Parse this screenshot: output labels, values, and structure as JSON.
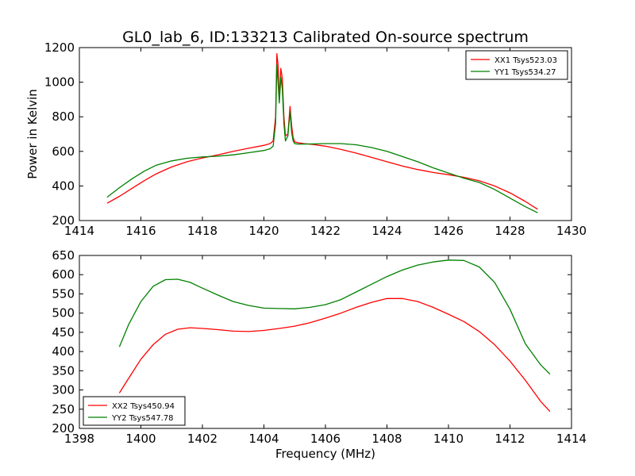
{
  "figure": {
    "title": "GL0_lab_6, ID:133213 Calibrated On-source spectrum"
  },
  "chart_data": [
    {
      "type": "line",
      "title": "GL0_lab_6, ID:133213 Calibrated On-source spectrum",
      "xlabel": "",
      "ylabel": "Power in Kelvin",
      "xlim": [
        1414,
        1430
      ],
      "ylim": [
        200,
        1200
      ],
      "xticks": [
        1414,
        1416,
        1418,
        1420,
        1422,
        1424,
        1426,
        1428,
        1430
      ],
      "yticks": [
        200,
        400,
        600,
        800,
        1000,
        1200
      ],
      "grid": false,
      "legend": "top-right",
      "series": [
        {
          "name": "XX1 Tsys523.03",
          "color": "#ff0000",
          "x": [
            1414.9,
            1415.3,
            1415.7,
            1416.1,
            1416.5,
            1417.0,
            1417.5,
            1418.0,
            1418.5,
            1419.0,
            1419.5,
            1420.0,
            1420.2,
            1420.3,
            1420.38,
            1420.42,
            1420.46,
            1420.5,
            1420.55,
            1420.6,
            1420.65,
            1420.7,
            1420.78,
            1420.85,
            1420.9,
            1420.95,
            1421.0,
            1421.1,
            1421.3,
            1421.6,
            1422.0,
            1422.5,
            1423.0,
            1423.5,
            1424.0,
            1424.5,
            1425.0,
            1425.5,
            1426.0,
            1426.5,
            1427.0,
            1427.5,
            1428.0,
            1428.5,
            1428.9
          ],
          "y": [
            300,
            340,
            385,
            430,
            470,
            510,
            540,
            562,
            580,
            600,
            618,
            635,
            645,
            660,
            800,
            1165,
            1100,
            900,
            1080,
            1020,
            800,
            690,
            700,
            860,
            750,
            680,
            655,
            650,
            645,
            640,
            630,
            612,
            590,
            565,
            540,
            515,
            495,
            478,
            465,
            450,
            430,
            400,
            360,
            310,
            265
          ]
        },
        {
          "name": "YY1 Tsys534.27",
          "color": "#008000",
          "x": [
            1414.9,
            1415.3,
            1415.7,
            1416.1,
            1416.5,
            1417.0,
            1417.5,
            1418.0,
            1418.5,
            1419.0,
            1419.5,
            1420.0,
            1420.2,
            1420.3,
            1420.38,
            1420.42,
            1420.46,
            1420.5,
            1420.55,
            1420.6,
            1420.65,
            1420.7,
            1420.78,
            1420.85,
            1420.9,
            1420.95,
            1421.0,
            1421.1,
            1421.3,
            1421.6,
            1422.0,
            1422.5,
            1423.0,
            1423.5,
            1424.0,
            1424.5,
            1425.0,
            1425.5,
            1426.0,
            1426.5,
            1427.0,
            1427.5,
            1428.0,
            1428.5,
            1428.9
          ],
          "y": [
            335,
            390,
            440,
            485,
            520,
            545,
            560,
            568,
            572,
            580,
            592,
            605,
            615,
            630,
            760,
            1100,
            1000,
            880,
            1030,
            960,
            760,
            660,
            690,
            830,
            710,
            660,
            645,
            642,
            642,
            643,
            645,
            645,
            638,
            622,
            600,
            570,
            540,
            505,
            475,
            445,
            420,
            380,
            330,
            280,
            245
          ]
        }
      ]
    },
    {
      "type": "line",
      "title": "",
      "xlabel": "Frequency (MHz)",
      "ylabel": "",
      "xlim": [
        1398,
        1414
      ],
      "ylim": [
        200,
        650
      ],
      "xticks": [
        1398,
        1400,
        1402,
        1404,
        1406,
        1408,
        1410,
        1412,
        1414
      ],
      "yticks": [
        200,
        250,
        300,
        350,
        400,
        450,
        500,
        550,
        600,
        650
      ],
      "grid": false,
      "legend": "bottom-left",
      "series": [
        {
          "name": "XX2 Tsys450.94",
          "color": "#ff0000",
          "x": [
            1399.3,
            1399.6,
            1400.0,
            1400.4,
            1400.8,
            1401.2,
            1401.6,
            1402.0,
            1402.5,
            1403.0,
            1403.5,
            1404.0,
            1404.5,
            1405.0,
            1405.5,
            1406.0,
            1406.5,
            1407.0,
            1407.5,
            1408.0,
            1408.5,
            1409.0,
            1409.5,
            1410.0,
            1410.5,
            1411.0,
            1411.5,
            1412.0,
            1412.5,
            1413.0,
            1413.3
          ],
          "y": [
            292,
            330,
            380,
            418,
            445,
            458,
            462,
            460,
            457,
            453,
            452,
            455,
            460,
            466,
            475,
            487,
            500,
            515,
            528,
            538,
            538,
            530,
            515,
            497,
            478,
            452,
            418,
            375,
            325,
            270,
            244
          ]
        },
        {
          "name": "YY2 Tsys547.78",
          "color": "#008000",
          "x": [
            1399.3,
            1399.6,
            1400.0,
            1400.4,
            1400.8,
            1401.2,
            1401.6,
            1402.0,
            1402.5,
            1403.0,
            1403.5,
            1404.0,
            1404.5,
            1405.0,
            1405.5,
            1406.0,
            1406.5,
            1407.0,
            1407.5,
            1408.0,
            1408.5,
            1409.0,
            1409.5,
            1410.0,
            1410.5,
            1411.0,
            1411.5,
            1412.0,
            1412.5,
            1413.0,
            1413.3
          ],
          "y": [
            412,
            470,
            530,
            570,
            587,
            588,
            580,
            565,
            547,
            530,
            520,
            513,
            512,
            511,
            515,
            522,
            535,
            555,
            575,
            595,
            612,
            625,
            633,
            638,
            637,
            620,
            580,
            510,
            420,
            365,
            341
          ]
        }
      ]
    }
  ]
}
